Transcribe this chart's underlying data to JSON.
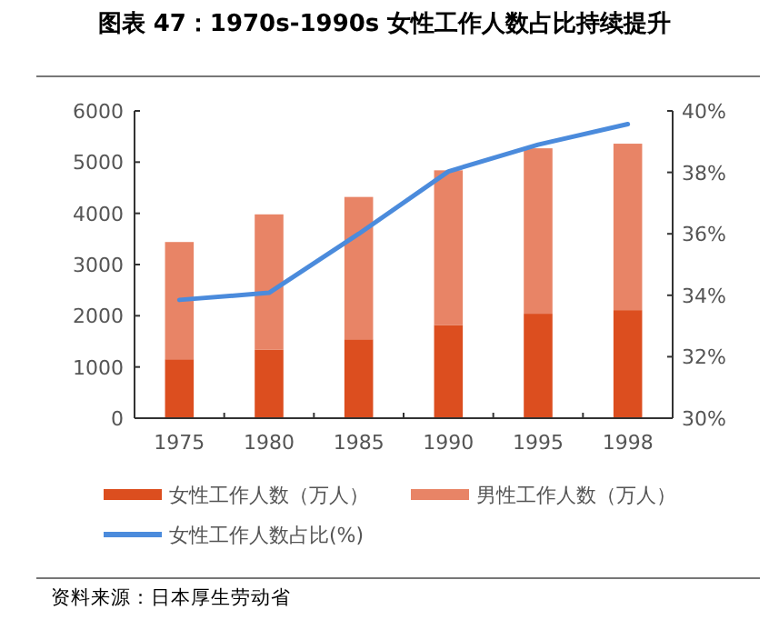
{
  "chart_data": {
    "type": "bar",
    "stacked": true,
    "title": "图表 47：1970s-1990s 女性工作人数占比持续提升",
    "categories": [
      "1975",
      "1980",
      "1985",
      "1990",
      "1995",
      "1998"
    ],
    "series": [
      {
        "name": "女性工作人数（万人）",
        "color": "#dc4e1f",
        "values": [
          1150,
          1340,
          1540,
          1820,
          2040,
          2110
        ]
      },
      {
        "name": "男性工作人数（万人）",
        "color": "#e88466",
        "values": [
          2290,
          2640,
          2780,
          3020,
          3230,
          3250
        ]
      },
      {
        "name": "女性工作人数占比(%)",
        "type": "line",
        "axis": "y2",
        "color": "#4b8bdc",
        "values": [
          33.85,
          34.08,
          36.0,
          38.03,
          38.9,
          39.57
        ]
      }
    ],
    "ylim": [
      0,
      6000
    ],
    "yticks": [
      0,
      1000,
      2000,
      3000,
      4000,
      5000,
      6000
    ],
    "y2lim": [
      30,
      40
    ],
    "y2ticks": [
      {
        "value": 30,
        "label": "30%"
      },
      {
        "value": 32,
        "label": "32%"
      },
      {
        "value": 34,
        "label": "34%"
      },
      {
        "value": 36,
        "label": "36%"
      },
      {
        "value": 38,
        "label": "38%"
      },
      {
        "value": 40,
        "label": "40%"
      }
    ],
    "grid": false,
    "legend": "bottom",
    "annotations": [
      "资料来源：日本厚生劳动省"
    ]
  }
}
